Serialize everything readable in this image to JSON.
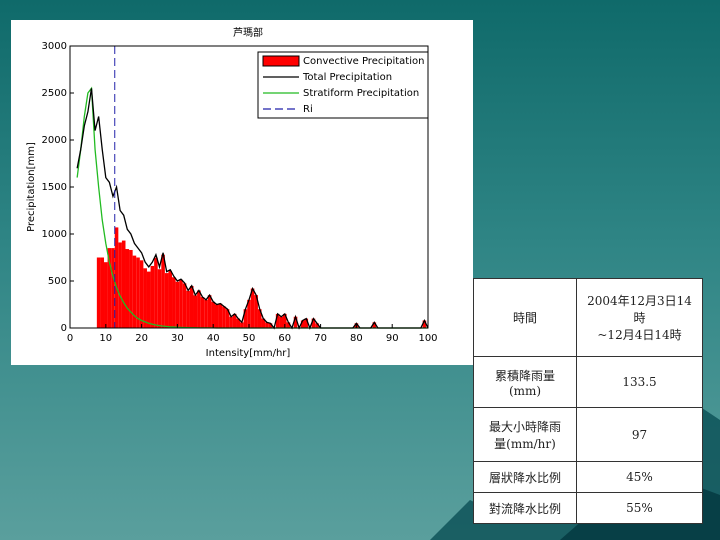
{
  "chart_data": {
    "type": "precip",
    "title": "芦瑪部",
    "xlabel": "Intensity[mm/hr]",
    "ylabel": "Precipitation[mm]",
    "xlim": [
      0,
      100
    ],
    "ylim": [
      0,
      3000
    ],
    "xticks": [
      0,
      10,
      20,
      30,
      40,
      50,
      60,
      70,
      80,
      90,
      100
    ],
    "yticks": [
      0,
      500,
      1000,
      1500,
      2000,
      2500,
      3000
    ],
    "x": [
      2,
      3,
      4,
      5,
      6,
      7,
      8,
      9,
      10,
      11,
      12,
      13,
      14,
      15,
      16,
      17,
      18,
      19,
      20,
      21,
      22,
      23,
      24,
      25,
      26,
      27,
      28,
      29,
      30,
      31,
      32,
      33,
      34,
      35,
      36,
      37,
      38,
      39,
      40,
      41,
      42,
      43,
      44,
      45,
      46,
      47,
      48,
      49,
      50,
      51,
      52,
      53,
      54,
      55,
      56,
      57,
      58,
      59,
      60,
      61,
      62,
      63,
      64,
      65,
      66,
      67,
      68,
      69,
      70,
      71,
      72,
      73,
      74,
      75,
      76,
      77,
      78,
      79,
      80,
      81,
      82,
      83,
      84,
      85,
      86,
      87,
      88,
      89,
      90,
      91,
      92,
      93,
      94,
      95,
      96,
      97,
      98,
      99,
      100
    ],
    "series": [
      {
        "name": "Convective Precipitation",
        "color": "#ff0000",
        "values": [
          0,
          0,
          0,
          0,
          0,
          0,
          750,
          750,
          700,
          850,
          850,
          1070,
          910,
          930,
          840,
          830,
          770,
          750,
          720,
          635,
          600,
          660,
          748,
          625,
          780,
          584,
          608,
          540,
          492,
          514,
          475,
          396,
          447,
          348,
          399,
          329,
          299,
          349,
          279,
          250,
          260,
          230,
          200,
          120,
          150,
          100,
          60,
          200,
          300,
          420,
          350,
          200,
          100,
          60,
          50,
          0,
          150,
          120,
          150,
          60,
          0,
          120,
          0,
          80,
          100,
          0,
          100,
          50,
          0,
          0,
          0,
          0,
          0,
          0,
          0,
          0,
          0,
          0,
          50,
          0,
          0,
          0,
          0,
          60,
          0,
          0,
          0,
          0,
          0,
          0,
          0,
          0,
          0,
          0,
          0,
          0,
          0,
          80,
          0
        ]
      },
      {
        "name": "Total Precipitation",
        "color": "#000000",
        "values": [
          1700,
          1900,
          2150,
          2300,
          2550,
          2100,
          2250,
          1900,
          1600,
          1550,
          1400,
          1500,
          1250,
          1200,
          1050,
          1000,
          900,
          850,
          800,
          700,
          650,
          700,
          780,
          650,
          800,
          600,
          620,
          550,
          500,
          520,
          480,
          400,
          450,
          350,
          400,
          330,
          300,
          350,
          280,
          250,
          260,
          230,
          200,
          120,
          150,
          100,
          60,
          200,
          300,
          420,
          350,
          200,
          100,
          60,
          50,
          0,
          150,
          120,
          150,
          60,
          0,
          120,
          0,
          80,
          100,
          0,
          100,
          50,
          0,
          0,
          0,
          0,
          0,
          0,
          0,
          0,
          0,
          0,
          50,
          0,
          0,
          0,
          0,
          60,
          0,
          0,
          0,
          0,
          0,
          0,
          0,
          0,
          0,
          0,
          0,
          0,
          0,
          80,
          0
        ]
      },
      {
        "name": "Stratiform Precipitation",
        "color": "#22bb22",
        "values": [
          1600,
          1900,
          2250,
          2500,
          2550,
          1900,
          1500,
          1150,
          900,
          700,
          550,
          430,
          340,
          270,
          210,
          170,
          130,
          100,
          80,
          65,
          50,
          40,
          32,
          25,
          20,
          16,
          12,
          10,
          8,
          6,
          5,
          4,
          3,
          2,
          1,
          1,
          1,
          1,
          1,
          0,
          0,
          0,
          0,
          0,
          0,
          0,
          0,
          0,
          0,
          0,
          0,
          0,
          0,
          0,
          0,
          0,
          0,
          0,
          0,
          0,
          0,
          0,
          0,
          0,
          0,
          0,
          0,
          0,
          0,
          0,
          0,
          0,
          0,
          0,
          0,
          0,
          0,
          0,
          0,
          0,
          0,
          0,
          0,
          0,
          0,
          0,
          0,
          0,
          0,
          0,
          0,
          0,
          0,
          0,
          0,
          0,
          0,
          0,
          0
        ]
      }
    ],
    "ri": {
      "name": "Ri",
      "color": "#2222aa",
      "x": 12.5
    }
  },
  "table": {
    "rows": [
      [
        "時間",
        "2004年12月3日14時\n~12月4日14時"
      ],
      [
        "累積降雨量\n(mm)",
        "133.5"
      ],
      [
        "最大小時降雨\n量(mm/hr)",
        "97"
      ],
      [
        "層狀降水比例",
        "45%"
      ],
      [
        "對流降水比例",
        "55%"
      ]
    ]
  }
}
